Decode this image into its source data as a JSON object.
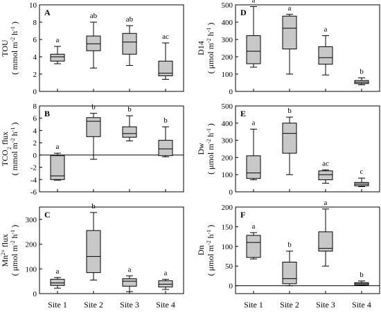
{
  "chart_data": [
    {
      "panel": "A",
      "type": "box",
      "ylabel": "TOU",
      "ylabel_unit": "( mmol m⁻² h⁻¹ )",
      "ylim": [
        0,
        10
      ],
      "yticks": [
        0,
        2,
        4,
        6,
        8,
        10
      ],
      "categories": [
        "Site 1",
        "Site 2",
        "Site 3",
        "Site 4"
      ],
      "boxes": [
        {
          "min": 3.2,
          "q1": 3.5,
          "median": 4.0,
          "q3": 4.3,
          "max": 5.2
        },
        {
          "min": 2.7,
          "q1": 4.7,
          "median": 5.5,
          "q3": 6.4,
          "max": 8.0
        },
        {
          "min": 3.0,
          "q1": 4.3,
          "median": 5.7,
          "q3": 6.7,
          "max": 7.6
        },
        {
          "min": 1.4,
          "q1": 1.8,
          "median": 2.1,
          "q3": 3.5,
          "max": 5.6
        }
      ],
      "letters": [
        "a",
        "ab",
        "ab",
        "ac"
      ],
      "zero_line": false
    },
    {
      "panel": "B",
      "type": "box",
      "ylabel": "TCO₂ flux",
      "ylabel_unit": "( mmol m⁻² h⁻¹ )",
      "ylim": [
        -6,
        8
      ],
      "yticks": [
        -6,
        -4,
        -2,
        0,
        2,
        4,
        6,
        8
      ],
      "categories": [
        "Site 1",
        "Site 2",
        "Site 3",
        "Site 4"
      ],
      "boxes": [
        {
          "min": -4.1,
          "q1": -4.0,
          "median": -3.4,
          "q3": -0.1,
          "max": 0.3
        },
        {
          "min": -0.7,
          "q1": 3.0,
          "median": 5.5,
          "q3": 6.1,
          "max": 6.8
        },
        {
          "min": 2.3,
          "q1": 2.9,
          "median": 3.5,
          "q3": 4.6,
          "max": 6.4
        },
        {
          "min": -0.3,
          "q1": -0.1,
          "median": 1.0,
          "q3": 2.4,
          "max": 4.6
        }
      ],
      "letters": [
        "a",
        "b",
        "b",
        "b"
      ],
      "zero_line": true
    },
    {
      "panel": "C",
      "type": "box",
      "ylabel": "Mn²⁺ flux",
      "ylabel_unit": "( μmol m⁻² h⁻¹ )",
      "ylim": [
        0,
        350
      ],
      "yticks": [
        0,
        100,
        200,
        300
      ],
      "categories": [
        "Site 1",
        "Site 2",
        "Site 3",
        "Site 4"
      ],
      "boxes": [
        {
          "min": 22,
          "q1": 33,
          "median": 43,
          "q3": 58,
          "max": 65
        },
        {
          "min": 55,
          "q1": 85,
          "median": 150,
          "q3": 255,
          "max": 328
        },
        {
          "min": 8,
          "q1": 30,
          "median": 50,
          "q3": 60,
          "max": 72
        },
        {
          "min": 17,
          "q1": 27,
          "median": 38,
          "q3": 52,
          "max": 58
        }
      ],
      "letters": [
        "a",
        "b",
        "a",
        "a"
      ],
      "zero_line": false
    },
    {
      "panel": "D",
      "type": "box",
      "ylabel": "D14",
      "ylabel_unit": "( μmol m⁻² h⁻¹ )",
      "ylim": [
        0,
        500
      ],
      "yticks": [
        0,
        100,
        200,
        300,
        400,
        500
      ],
      "categories": [
        "Site 1",
        "Site 2",
        "Site 3",
        "Site 4"
      ],
      "boxes": [
        {
          "min": 140,
          "q1": 160,
          "median": 232,
          "q3": 322,
          "max": 490
        },
        {
          "min": 100,
          "q1": 245,
          "median": 365,
          "q3": 435,
          "max": 445
        },
        {
          "min": 95,
          "q1": 157,
          "median": 195,
          "q3": 258,
          "max": 322
        },
        {
          "min": 38,
          "q1": 45,
          "median": 53,
          "q3": 63,
          "max": 78
        }
      ],
      "letters": [
        "a",
        "a",
        "a",
        "b"
      ],
      "zero_line": false
    },
    {
      "panel": "E",
      "type": "box",
      "ylabel": "Dw",
      "ylabel_unit": "( μmol m⁻² h⁻¹ )",
      "ylim": [
        0,
        500
      ],
      "yticks": [
        0,
        100,
        200,
        300,
        400,
        500
      ],
      "categories": [
        "Site 1",
        "Site 2",
        "Site 3",
        "Site 4"
      ],
      "boxes": [
        {
          "min": 70,
          "q1": 78,
          "median": 110,
          "q3": 210,
          "max": 365
        },
        {
          "min": 100,
          "q1": 225,
          "median": 340,
          "q3": 400,
          "max": 435
        },
        {
          "min": 50,
          "q1": 70,
          "median": 100,
          "q3": 122,
          "max": 128
        },
        {
          "min": 30,
          "q1": 35,
          "median": 45,
          "q3": 55,
          "max": 80
        }
      ],
      "letters": [
        "a",
        "b",
        "ac",
        "c"
      ],
      "zero_line": false
    },
    {
      "panel": "F",
      "type": "box",
      "ylabel": "Dn",
      "ylabel_unit": "( μmol m⁻² h⁻¹ )",
      "ylim": [
        -20,
        200
      ],
      "yticks": [
        0,
        50,
        100,
        150,
        200
      ],
      "categories": [
        "Site 1",
        "Site 2",
        "Site 3",
        "Site 4"
      ],
      "boxes": [
        {
          "min": 68,
          "q1": 72,
          "median": 110,
          "q3": 128,
          "max": 135
        },
        {
          "min": 0,
          "q1": 5,
          "median": 18,
          "q3": 60,
          "max": 88
        },
        {
          "min": 50,
          "q1": 88,
          "median": 95,
          "q3": 137,
          "max": 195
        },
        {
          "min": 1,
          "q1": 2,
          "median": 5,
          "q3": 8,
          "max": 12
        }
      ],
      "letters": [
        "a",
        "b",
        "a",
        "b"
      ],
      "zero_line": true
    }
  ],
  "colors": {
    "box_fill": "#c8c8c8",
    "line": "#000000"
  }
}
